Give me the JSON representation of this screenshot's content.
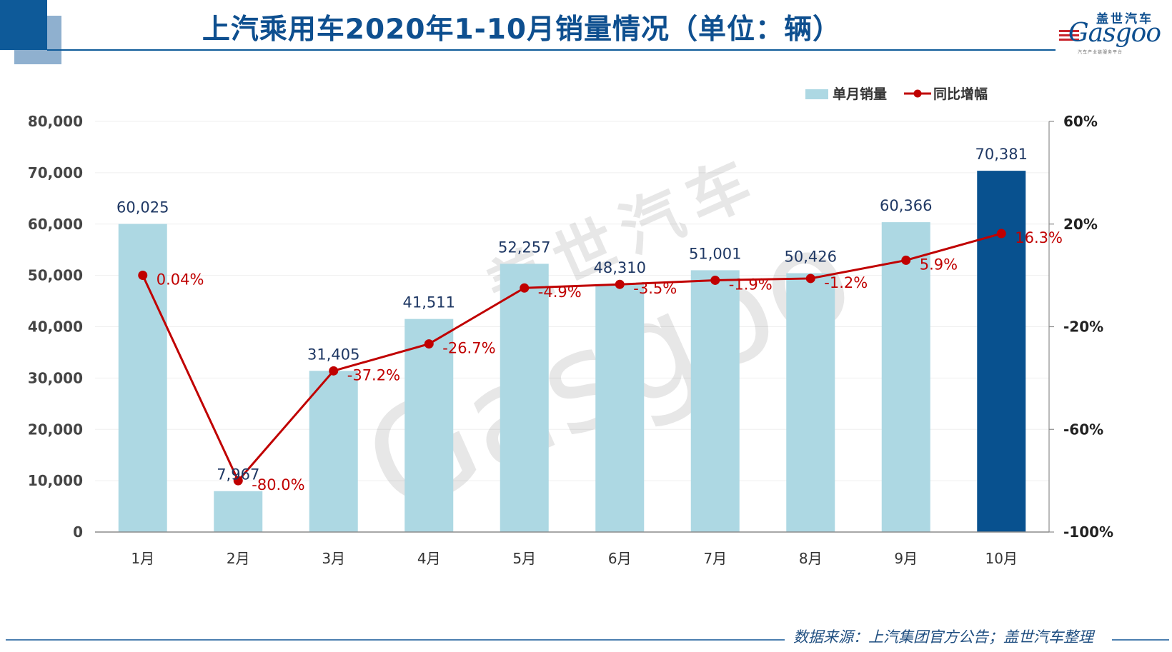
{
  "title": "上汽乘用车2020年1-10月销量情况（单位：辆）",
  "source": "数据来源：上汽集团官方公告；盖世汽车整理",
  "logo": {
    "brand_cn": "盖世汽车",
    "brand_en": "Gasgoo",
    "tagline": "汽车产业链服务平台"
  },
  "watermark": {
    "cn": "盖世汽车",
    "en": "Gasgoo"
  },
  "colors": {
    "bar": "#add8e3",
    "bar_highlight": "#08518f",
    "line": "#c00000",
    "title": "#0e4f8f",
    "value_label": "#1f3864"
  },
  "chart_data": {
    "type": "bar",
    "title": "上汽乘用车2020年1-10月销量情况（单位：辆）",
    "categories": [
      "1月",
      "2月",
      "3月",
      "4月",
      "5月",
      "6月",
      "7月",
      "8月",
      "9月",
      "10月"
    ],
    "series": [
      {
        "name": "单月销量",
        "type": "bar",
        "axis": "left",
        "values": [
          60025,
          7967,
          31405,
          41511,
          52257,
          48310,
          51001,
          50426,
          60366,
          70381
        ],
        "labels": [
          "60,025",
          "7,967",
          "31,405",
          "41,511",
          "52,257",
          "48,310",
          "51,001",
          "50,426",
          "60,366",
          "70,381"
        ],
        "highlight_index": 9
      },
      {
        "name": "同比增幅",
        "type": "line",
        "axis": "right",
        "values": [
          0.04,
          -80.0,
          -37.2,
          -26.7,
          -4.9,
          -3.5,
          -1.9,
          -1.2,
          5.9,
          16.3
        ],
        "labels": [
          "0.04%",
          "-80.0%",
          "-37.2%",
          "-26.7%",
          "-4.9%",
          "-3.5%",
          "-1.9%",
          "-1.2%",
          "5.9%",
          "16.3%"
        ]
      }
    ],
    "y_left": {
      "min": 0,
      "max": 80000,
      "ticks": [
        0,
        10000,
        20000,
        30000,
        40000,
        50000,
        60000,
        70000,
        80000
      ],
      "tick_labels": [
        "0",
        "10,000",
        "20,000",
        "30,000",
        "40,000",
        "50,000",
        "60,000",
        "70,000",
        "80,000"
      ]
    },
    "y_right": {
      "min": -100,
      "max": 60,
      "ticks": [
        -100,
        -60,
        -20,
        20,
        60
      ],
      "tick_labels": [
        "-100%",
        "-60%",
        "-20%",
        "20%",
        "60%"
      ]
    },
    "grid": true,
    "legend_position": "top-right"
  }
}
